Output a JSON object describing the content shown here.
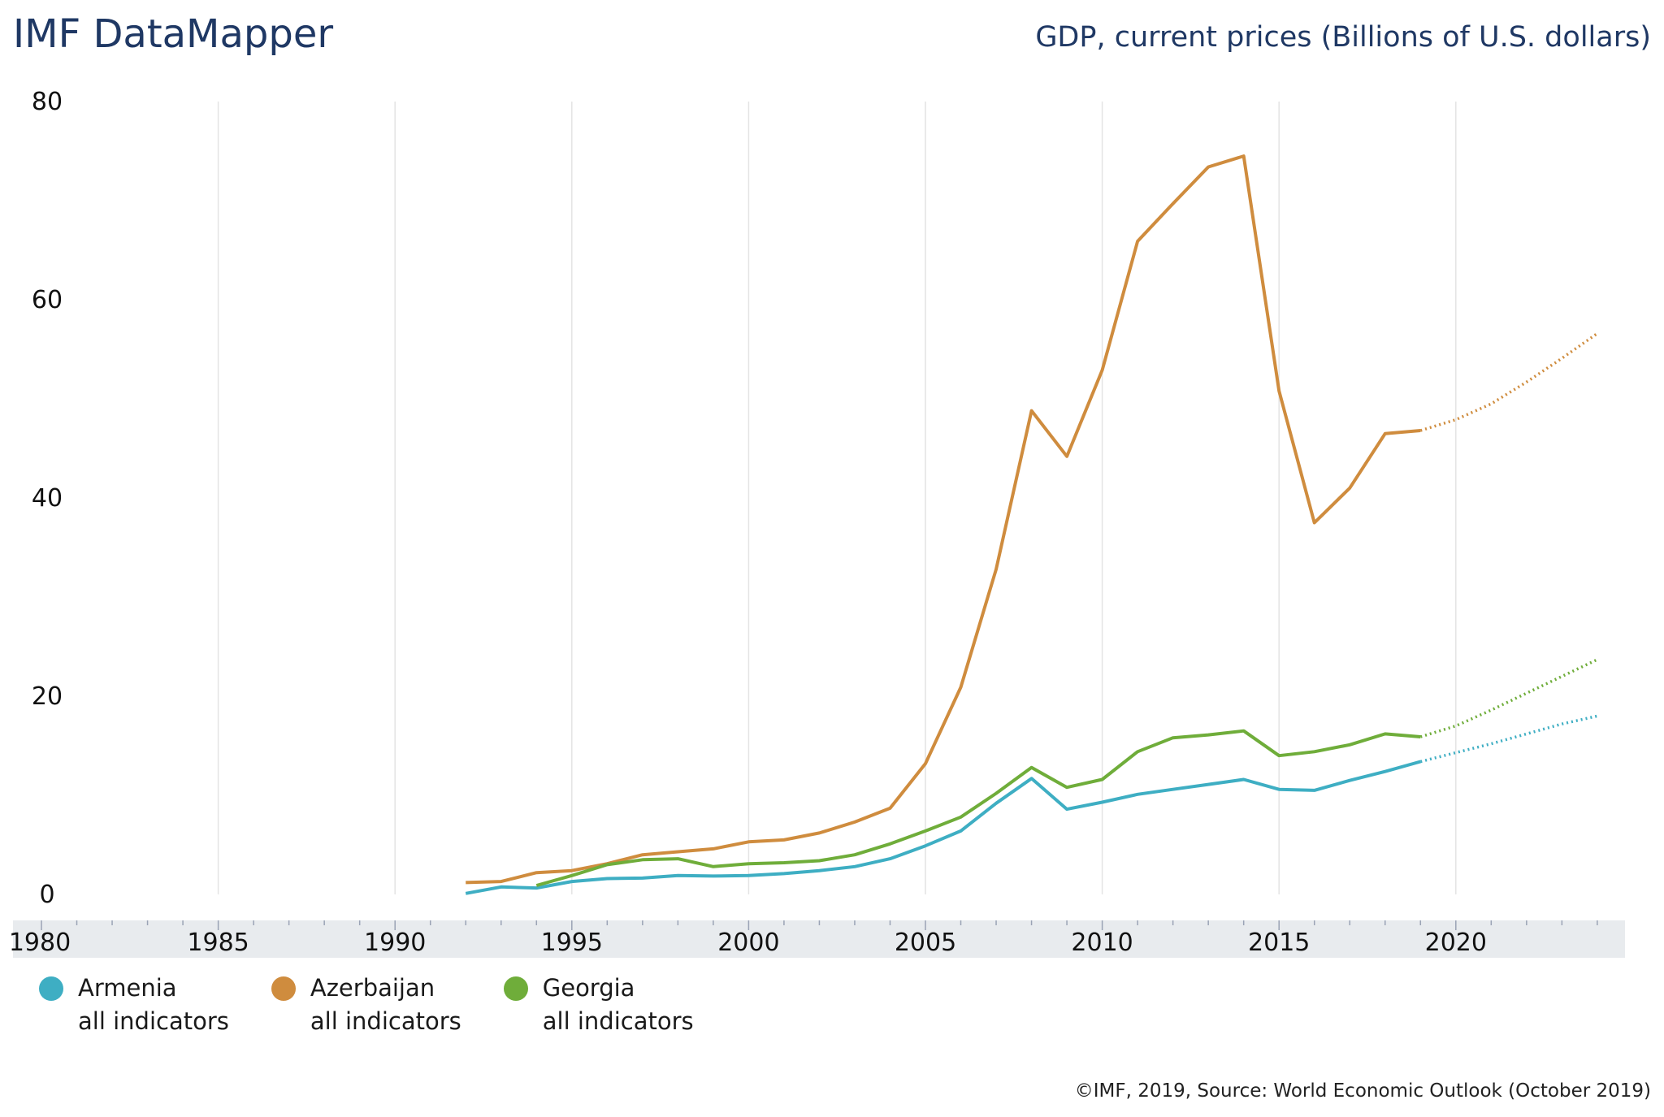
{
  "header": {
    "brand": "IMF DataMapper",
    "indicator_title": "GDP, current prices (Billions of U.S. dollars)"
  },
  "footer": {
    "source": "©IMF, 2019, Source: World Economic Outlook (October 2019)"
  },
  "chart_data": {
    "type": "line",
    "title": "GDP, current prices (Billions of U.S. dollars)",
    "xlim": [
      1980,
      2024
    ],
    "ylim": [
      0,
      80
    ],
    "x_ticks": [
      1980,
      1985,
      1990,
      1995,
      2000,
      2005,
      2010,
      2015,
      2020
    ],
    "y_ticks": [
      0,
      20,
      40,
      60,
      80
    ],
    "grid": "vertical every 5 years",
    "projection_start": 2019,
    "projection_style": "dotted",
    "legend_placement": "bottom-left",
    "series": [
      {
        "name": "Armenia",
        "sublabel": "all indicators",
        "color": "#3eaec3",
        "start_year": 1992,
        "values": [
          0.1,
          0.75,
          0.65,
          1.3,
          1.6,
          1.65,
          1.9,
          1.85,
          1.9,
          2.1,
          2.4,
          2.8,
          3.6,
          4.9,
          6.4,
          9.2,
          11.7,
          8.6,
          9.3,
          10.1,
          10.6,
          11.1,
          11.6,
          10.6,
          10.5,
          11.5,
          12.4,
          13.4,
          14.3,
          15.2,
          16.2,
          17.2,
          18.0
        ]
      },
      {
        "name": "Azerbaijan",
        "sublabel": "all indicators",
        "color": "#cf8c3e",
        "start_year": 1992,
        "values": [
          1.2,
          1.3,
          2.2,
          2.4,
          3.1,
          4.0,
          4.3,
          4.6,
          5.3,
          5.5,
          6.2,
          7.3,
          8.7,
          13.2,
          20.9,
          32.8,
          48.8,
          44.2,
          52.9,
          65.9,
          69.7,
          73.4,
          74.5,
          50.8,
          37.5,
          41.0,
          46.5,
          46.8,
          47.9,
          49.5,
          51.7,
          54.1,
          56.6
        ]
      },
      {
        "name": "Georgia",
        "sublabel": "all indicators",
        "color": "#6fad3a",
        "start_year": 1994,
        "values": [
          0.9,
          1.9,
          3.0,
          3.5,
          3.6,
          2.8,
          3.1,
          3.2,
          3.4,
          4.0,
          5.1,
          6.4,
          7.8,
          10.2,
          12.8,
          10.8,
          11.6,
          14.4,
          15.8,
          16.1,
          16.5,
          14.0,
          14.4,
          15.1,
          16.2,
          15.9,
          17.0,
          18.6,
          20.3,
          22.0,
          23.7
        ]
      }
    ]
  }
}
